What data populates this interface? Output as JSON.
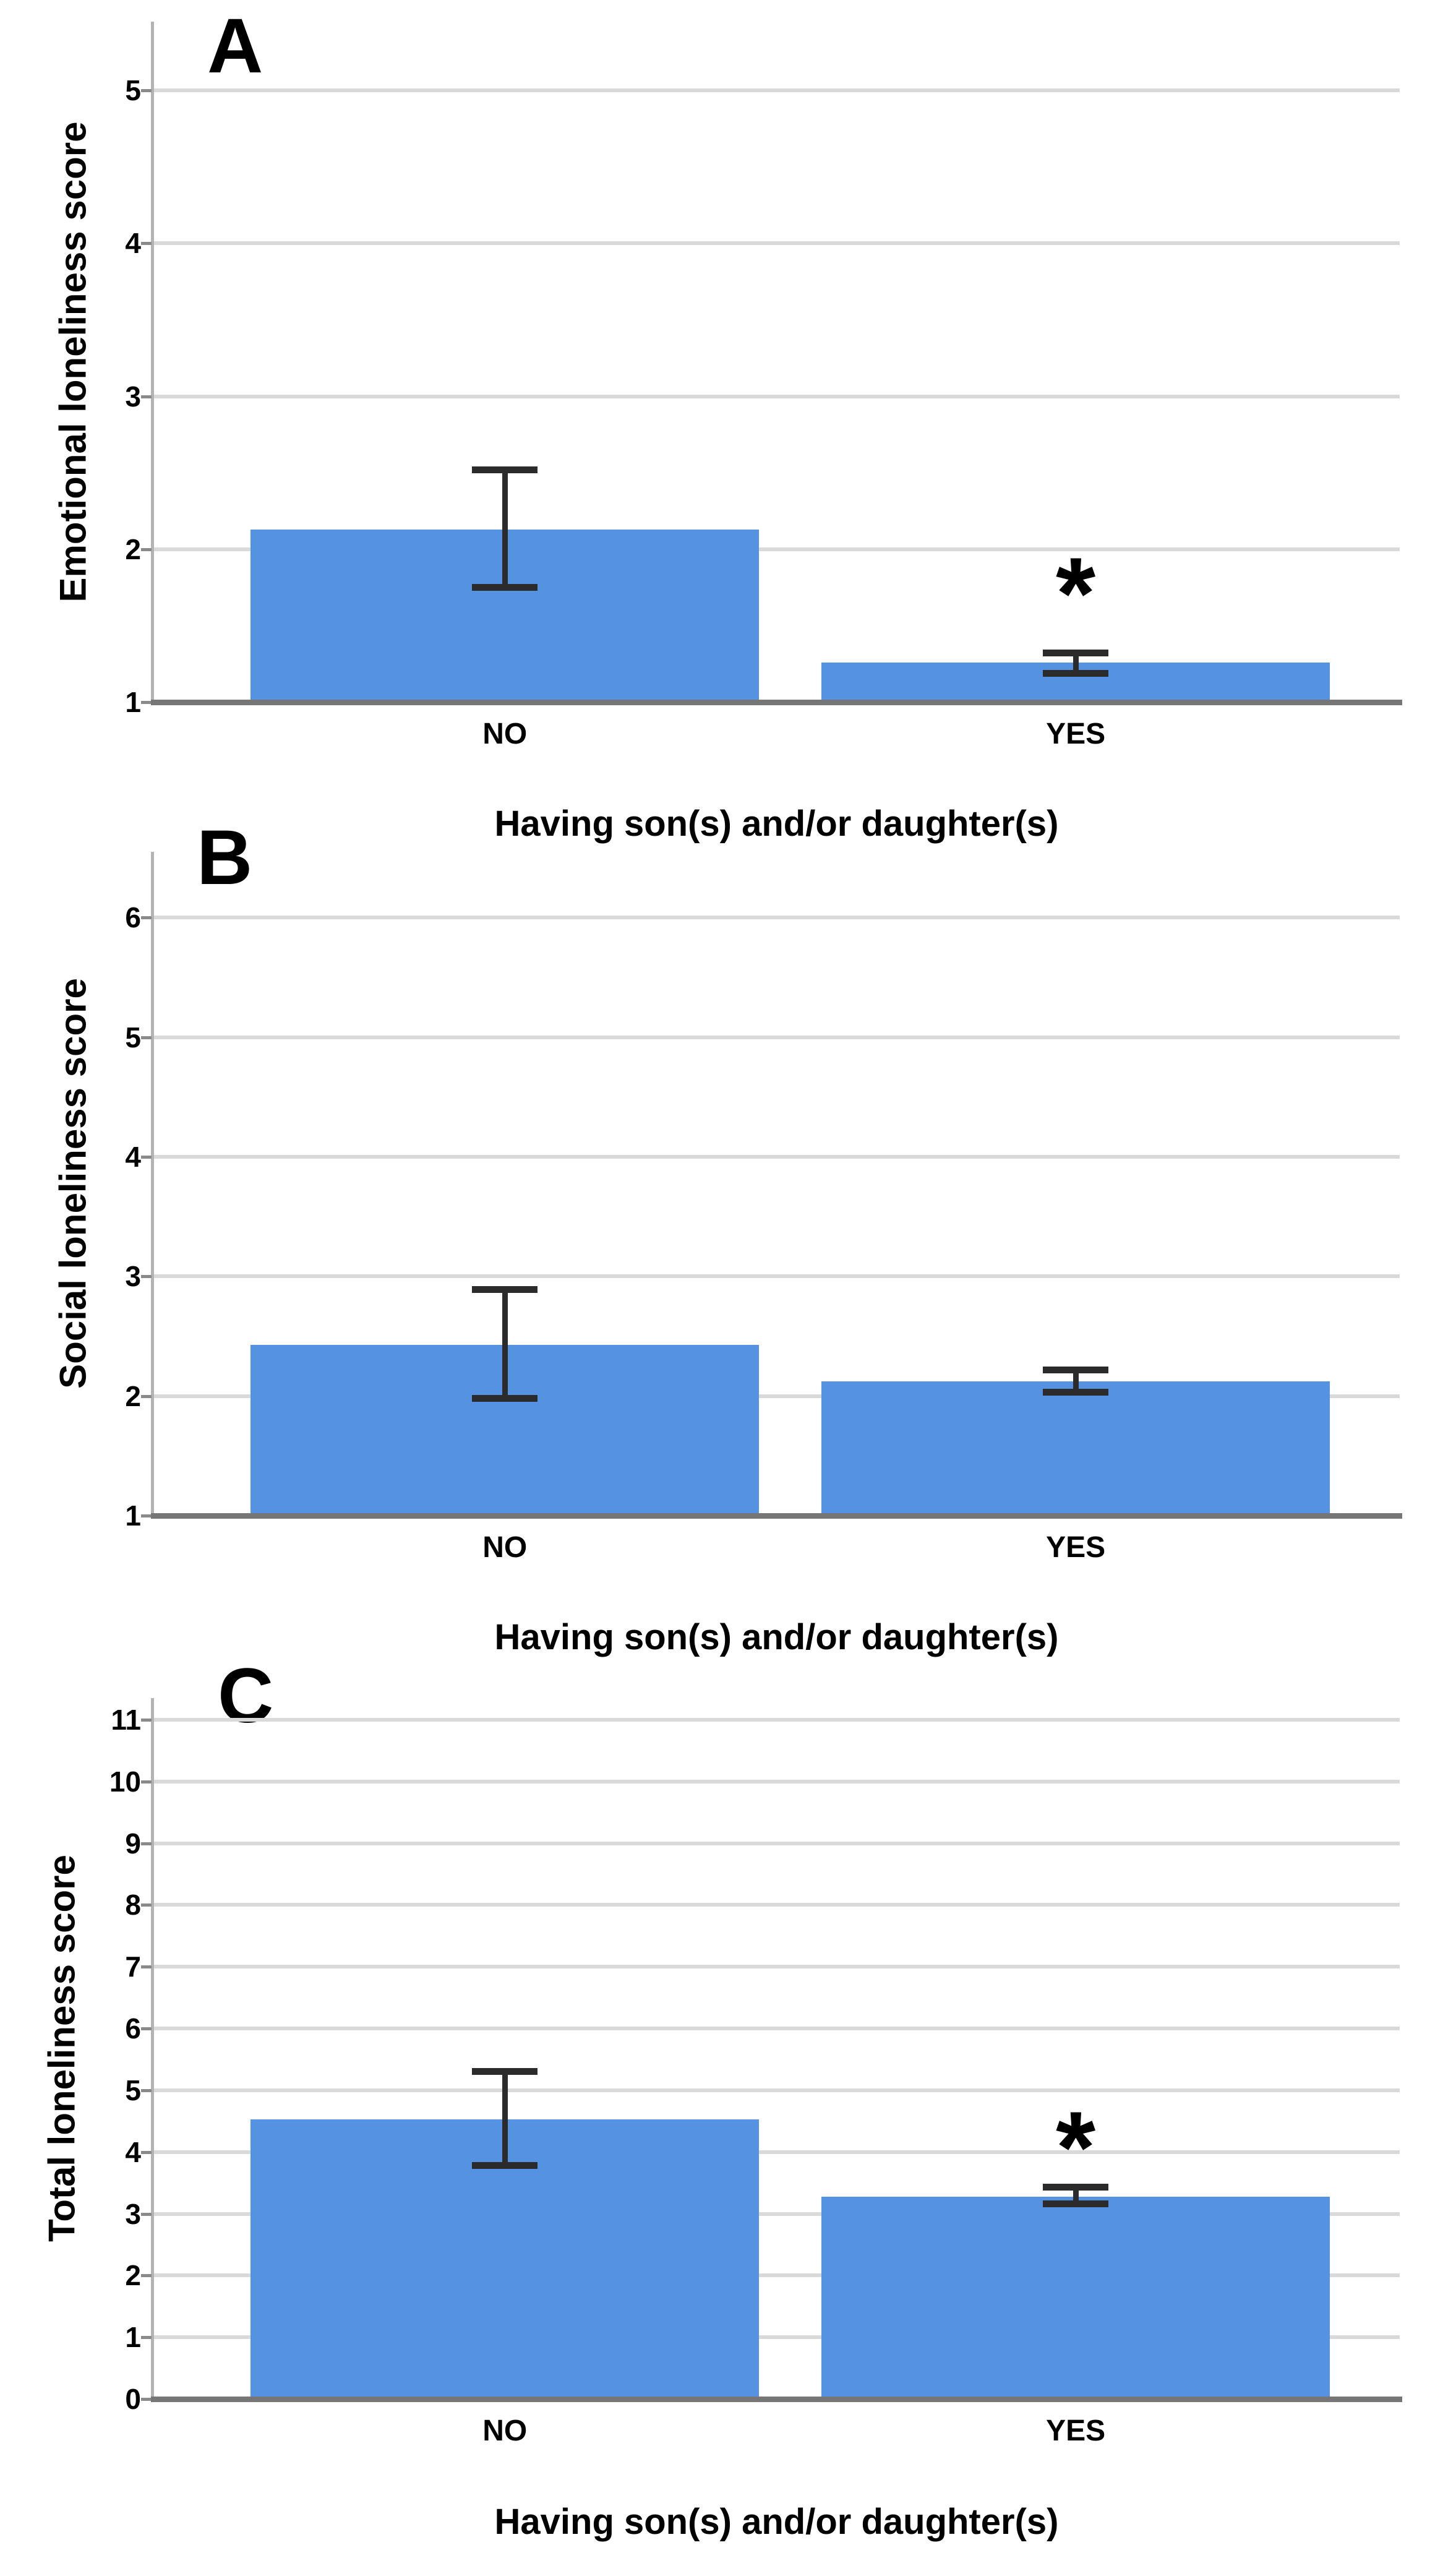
{
  "figure_title": "",
  "chart_data": [
    {
      "type": "bar",
      "panel_label": "A",
      "ylabel": "Emotional loneliness score",
      "xlabel": "Having son(s) and/or daughter(s)",
      "categories": [
        "NO",
        "YES"
      ],
      "values": [
        2.13,
        1.26
      ],
      "error_high": [
        2.52,
        1.32
      ],
      "error_low": [
        1.75,
        1.19
      ],
      "significance_markers": [
        "",
        "*"
      ],
      "star_y": 1.82,
      "ylim": [
        1,
        5.45
      ],
      "yticks": [
        1,
        2,
        3,
        4,
        5
      ],
      "grid": true,
      "legend": "none",
      "bar_color": "#5592E2",
      "error_color": "#2B2B2B"
    },
    {
      "type": "bar",
      "panel_label": "B",
      "ylabel": "Social loneliness score",
      "xlabel": "Having son(s) and/or daughter(s)",
      "categories": [
        "NO",
        "YES"
      ],
      "values": [
        2.43,
        2.12
      ],
      "error_high": [
        2.89,
        2.22
      ],
      "error_low": [
        1.98,
        2.03
      ],
      "significance_markers": [
        "",
        ""
      ],
      "star_y": null,
      "ylim": [
        1,
        6.55
      ],
      "yticks": [
        1,
        2,
        3,
        4,
        5,
        6
      ],
      "grid": true,
      "legend": "none",
      "bar_color": "#5592E2",
      "error_color": "#2B2B2B"
    },
    {
      "type": "bar",
      "panel_label": "C",
      "ylabel": "Total loneliness score",
      "xlabel": "Having son(s) and/or daughter(s)",
      "categories": [
        "NO",
        "YES"
      ],
      "values": [
        4.53,
        3.28
      ],
      "error_high": [
        5.3,
        3.43
      ],
      "error_low": [
        3.78,
        3.16
      ],
      "significance_markers": [
        "",
        "*"
      ],
      "star_y": 4.35,
      "ylim": [
        0,
        11.35
      ],
      "yticks": [
        0,
        1,
        2,
        3,
        4,
        5,
        6,
        7,
        8,
        9,
        10,
        11
      ],
      "grid": true,
      "legend": "none",
      "bar_color": "#5592E2",
      "error_color": "#2B2B2B"
    }
  ]
}
